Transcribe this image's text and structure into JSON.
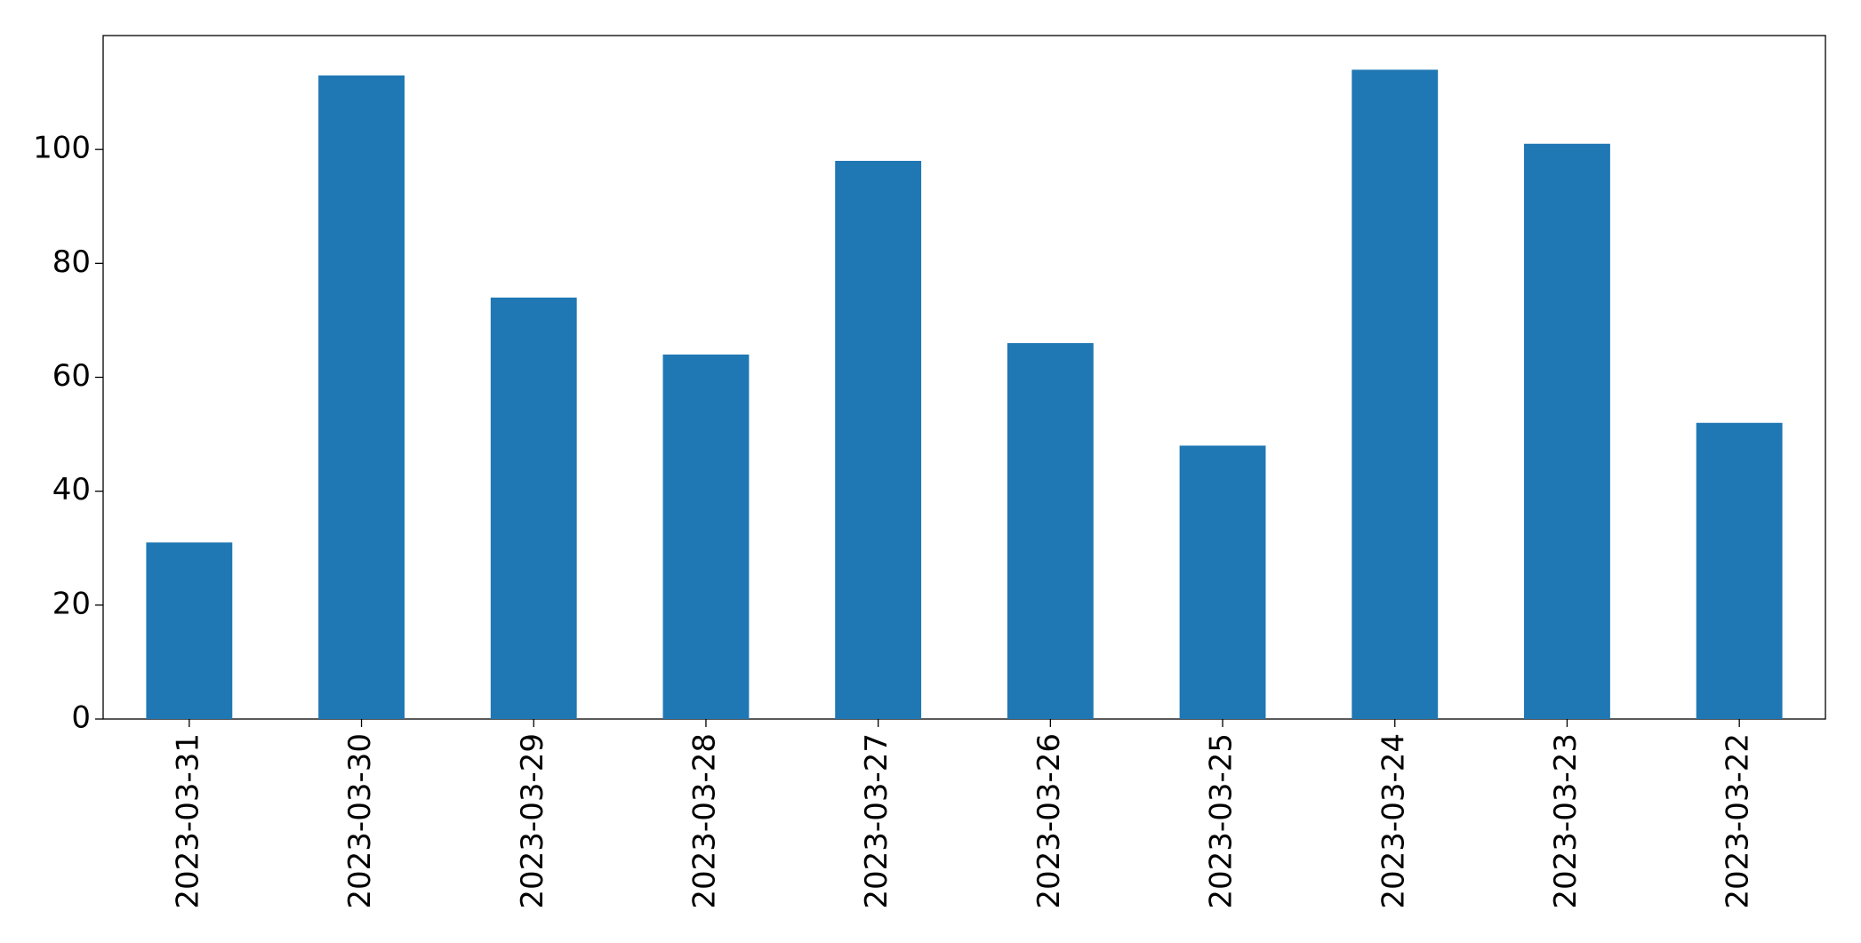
{
  "chart_data": {
    "type": "bar",
    "categories": [
      "2023-03-31",
      "2023-03-30",
      "2023-03-29",
      "2023-03-28",
      "2023-03-27",
      "2023-03-26",
      "2023-03-25",
      "2023-03-24",
      "2023-03-23",
      "2023-03-22"
    ],
    "values": [
      31,
      113,
      74,
      64,
      98,
      66,
      48,
      114,
      101,
      52
    ],
    "color": "#1f77b4",
    "ylim": [
      0,
      120
    ],
    "yticks": [
      0,
      20,
      40,
      60,
      80,
      100
    ],
    "grid": false
  }
}
